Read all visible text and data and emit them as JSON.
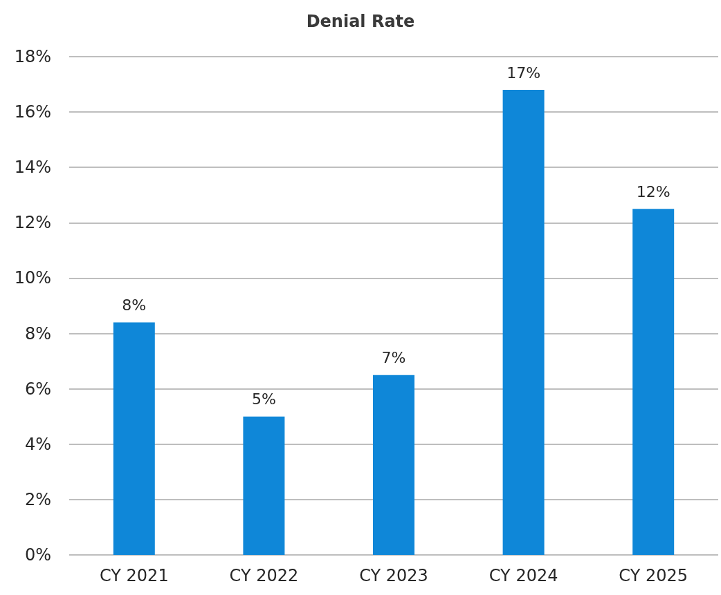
{
  "chart_data": {
    "type": "bar",
    "title": "Denial Rate",
    "categories": [
      "CY 2021",
      "CY 2022",
      "CY 2023",
      "CY 2024",
      "CY 2025"
    ],
    "values": [
      8.4,
      5.0,
      6.5,
      16.8,
      12.5
    ],
    "color": "#0f87d8",
    "value_labels": [
      "8%",
      "5%",
      "7%",
      "17%",
      "12%"
    ],
    "ylim": [
      0,
      18
    ],
    "yticks": [
      {
        "value": 0,
        "label": "0%"
      },
      {
        "value": 2,
        "label": "2%"
      },
      {
        "value": 4,
        "label": "4%"
      },
      {
        "value": 6,
        "label": "6%"
      },
      {
        "value": 8,
        "label": "8%"
      },
      {
        "value": 10,
        "label": "10%"
      },
      {
        "value": 12,
        "label": "12%"
      },
      {
        "value": 14,
        "label": "14%"
      },
      {
        "value": 16,
        "label": "16%"
      },
      {
        "value": 18,
        "label": "18%"
      }
    ],
    "grid": true
  }
}
